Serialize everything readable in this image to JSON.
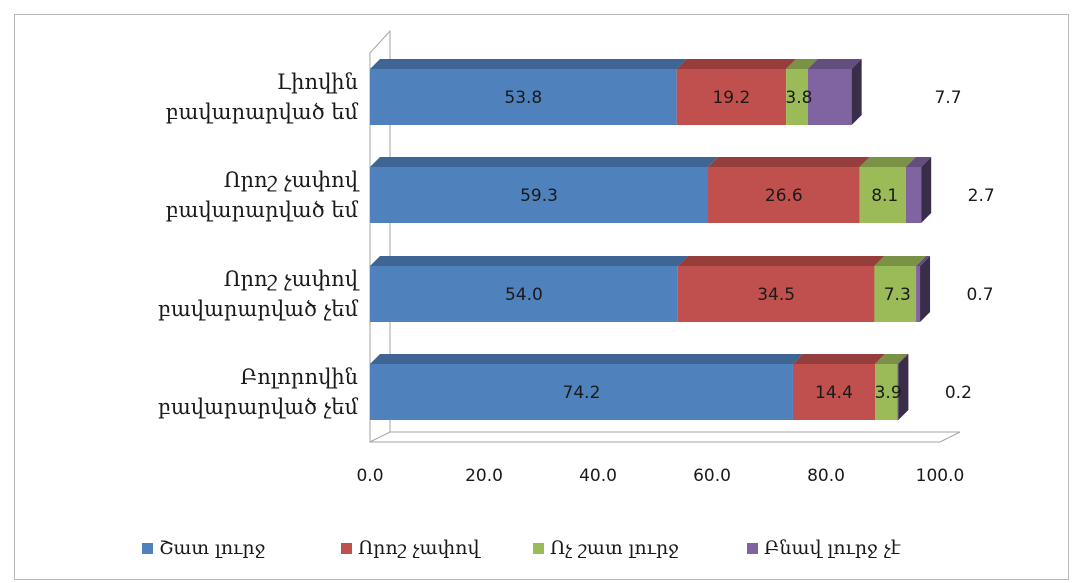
{
  "chart_data": {
    "type": "bar",
    "orientation": "horizontal",
    "stacked": true,
    "three_d": true,
    "categories": [
      [
        "Լիովին",
        "բավարարված եմ"
      ],
      [
        "Որոշ չափով",
        "բավարարված եմ"
      ],
      [
        "Որոշ չափով",
        "բավարարված չեմ"
      ],
      [
        "Բոլորովին",
        "բավարարված չեմ"
      ]
    ],
    "series": [
      {
        "name": "Շատ լուրջ",
        "color": "#4F81BD",
        "values": [
          53.8,
          59.3,
          54.0,
          74.2
        ],
        "labels": [
          "53.8",
          "59.3",
          "54.0",
          "74.2"
        ]
      },
      {
        "name": "Որոշ չափով",
        "color": "#C0504D",
        "values": [
          19.2,
          26.6,
          34.5,
          14.4
        ],
        "labels": [
          "19.2",
          "26.6",
          "34.5",
          "14.4"
        ]
      },
      {
        "name": "Ոչ շատ լուրջ",
        "color": "#9BBB59",
        "values": [
          3.8,
          8.1,
          7.3,
          3.9
        ],
        "labels": [
          "3.8",
          "8.1",
          "7.3",
          "3.9"
        ]
      },
      {
        "name": "Բնավ լուրջ չէ",
        "color": "#8064A2",
        "values": [
          7.7,
          2.7,
          0.7,
          0.2
        ],
        "labels": [
          "7.7",
          "2.7",
          "0.7",
          "0.2"
        ]
      }
    ],
    "xlim": [
      0,
      100
    ],
    "x_ticks": [
      "0.0",
      "20.0",
      "40.0",
      "60.0",
      "80.0",
      "100.0"
    ],
    "legend_position": "bottom",
    "grid": false
  }
}
